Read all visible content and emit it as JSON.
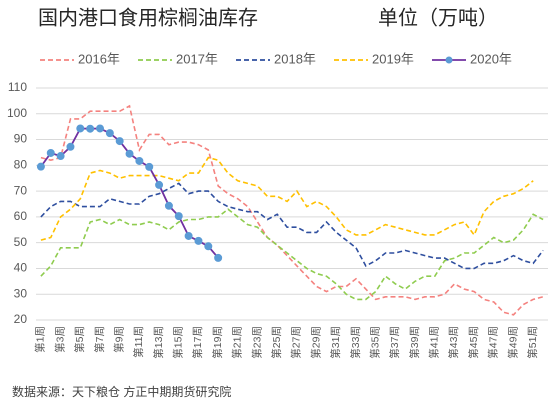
{
  "chart_data": {
    "type": "line",
    "title": "国内港口食用棕榈油库存",
    "subtitle": "单位（万吨）",
    "source": "数据来源：天下粮仓 方正中期期货研究院",
    "categories": [
      "第1周",
      null,
      "第3周",
      null,
      "第5周",
      null,
      "第7周",
      null,
      "第9周",
      null,
      "第11周",
      null,
      "第13周",
      null,
      "第15周",
      null,
      "第17周",
      null,
      "第19周",
      null,
      "第21周",
      null,
      "第23周",
      null,
      "第25周",
      null,
      "第27周",
      null,
      "第29周",
      null,
      "第31周",
      null,
      "第33周",
      null,
      "第35周",
      null,
      "第37周",
      null,
      "第39周",
      null,
      "第41周",
      null,
      "第43周",
      null,
      "第45周",
      null,
      "第47周",
      null,
      "第49周",
      null,
      "第51周",
      null
    ],
    "ylim": [
      20,
      110
    ],
    "yticks": [
      20,
      30,
      40,
      50,
      60,
      70,
      80,
      90,
      100,
      110
    ],
    "grid": true,
    "legend": "top",
    "series": [
      {
        "name": "2016年",
        "color": "#f4827f",
        "dashed": true,
        "values": [
          83,
          82,
          83,
          98,
          98,
          101,
          101,
          101,
          101,
          103,
          86,
          92,
          92,
          88,
          89,
          89,
          88,
          86,
          72,
          69,
          67,
          64,
          58,
          52,
          49,
          45,
          41,
          37,
          33,
          31,
          33,
          33,
          36,
          32,
          28,
          29,
          29,
          29,
          28,
          29,
          29,
          30,
          34,
          32,
          31,
          28,
          27,
          23,
          22,
          26,
          28,
          29
        ]
      },
      {
        "name": "2017年",
        "color": "#8fcc4f",
        "dashed": true,
        "values": [
          37,
          41,
          48,
          48,
          48,
          58,
          59,
          57,
          59,
          57,
          57,
          58,
          57,
          55,
          58,
          59,
          59,
          60,
          60,
          63,
          60,
          57,
          56,
          52,
          49,
          46,
          43,
          40,
          38,
          37,
          34,
          30,
          28,
          28,
          31,
          37,
          34,
          32,
          35,
          37,
          37,
          43,
          44,
          46,
          46,
          49,
          52,
          50,
          51,
          55,
          61,
          59
        ]
      },
      {
        "name": "2018年",
        "color": "#2f4f9f",
        "dashed": true,
        "values": [
          60,
          64,
          66,
          66,
          64,
          64,
          64,
          67,
          66,
          65,
          65,
          68,
          69,
          71,
          73,
          69,
          70,
          70,
          66,
          64,
          63,
          62,
          62,
          59,
          61,
          56,
          56,
          54,
          54,
          58,
          54,
          51,
          48,
          41,
          43,
          46,
          46,
          47,
          46,
          45,
          44,
          44,
          42,
          40,
          40,
          42,
          42,
          43,
          45,
          43,
          42,
          47
        ]
      },
      {
        "name": "2019年",
        "color": "#ffc000",
        "dashed": true,
        "values": [
          51,
          52,
          60,
          63,
          67,
          77,
          78,
          77,
          75,
          76,
          76,
          76,
          76,
          75,
          74,
          77,
          77,
          83,
          82,
          77,
          74,
          73,
          72,
          68,
          68,
          66,
          70,
          64,
          66,
          64,
          60,
          55,
          53,
          53,
          55,
          57,
          56,
          55,
          54,
          53,
          53,
          55,
          57,
          58,
          53,
          62,
          66,
          68,
          69,
          71,
          74,
          null
        ]
      },
      {
        "name": "2020年",
        "color": "#7030a0",
        "marker_color": "#5b9bd5",
        "dashed": false,
        "values": [
          79.5,
          84.8,
          83.6,
          87.2,
          94.3,
          94.2,
          94.3,
          92.5,
          89.4,
          84.5,
          81.7,
          79.4,
          72.4,
          64.3,
          60.3,
          52.6,
          50.7,
          48.6,
          44.1,
          null,
          null,
          null,
          null,
          null,
          null,
          null,
          null,
          null,
          null,
          null,
          null,
          null,
          null,
          null,
          null,
          null,
          null,
          null,
          null,
          null,
          null,
          null,
          null,
          null,
          null,
          null,
          null,
          null,
          null,
          null,
          null,
          null
        ]
      }
    ]
  }
}
